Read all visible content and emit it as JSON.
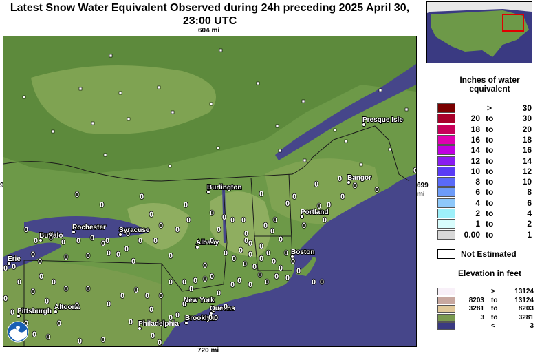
{
  "title": {
    "line1": "Latest Snow Water Equivalent Observed during 24h preceding 2025 April 30,",
    "line2": "23:00 UTC"
  },
  "distances": {
    "top": "604 mi",
    "bottom": "720 mi",
    "right_value": "699",
    "right_unit": "mi",
    "left_value": "9"
  },
  "cities": [
    {
      "name": "Presque Isle"
    },
    {
      "name": "Burlington"
    },
    {
      "name": "Bangor"
    },
    {
      "name": "Rochester"
    },
    {
      "name": "Syracuse"
    },
    {
      "name": "Buffalo"
    },
    {
      "name": "Portland"
    },
    {
      "name": "Albany"
    },
    {
      "name": "Erie"
    },
    {
      "name": "Boston"
    },
    {
      "name": "New York"
    },
    {
      "name": "Queens"
    },
    {
      "name": "Pittsburgh"
    },
    {
      "name": "Altoona"
    },
    {
      "name": "Philadelphia"
    },
    {
      "name": "Brooklyn"
    }
  ],
  "observation_marker": "0",
  "legend": {
    "title_line1": "Inches of water",
    "title_line2": "equivalent",
    "to_label": "to",
    "rows": [
      {
        "low": "",
        "high": "30",
        "prefix": ">",
        "color": "#7a0000"
      },
      {
        "low": "20",
        "high": "30",
        "color": "#a8002a"
      },
      {
        "low": "18",
        "high": "20",
        "color": "#c8005a"
      },
      {
        "low": "16",
        "high": "18",
        "color": "#e000b0"
      },
      {
        "low": "14",
        "high": "16",
        "color": "#c000e0"
      },
      {
        "low": "12",
        "high": "14",
        "color": "#8a1cf0"
      },
      {
        "low": "10",
        "high": "12",
        "color": "#5a3cf5"
      },
      {
        "low": "8",
        "high": "10",
        "color": "#5a6af8"
      },
      {
        "low": "6",
        "high": "8",
        "color": "#6e9cf8"
      },
      {
        "low": "4",
        "high": "6",
        "color": "#8ec8fa"
      },
      {
        "low": "2",
        "high": "4",
        "color": "#9ef0fa"
      },
      {
        "low": "1",
        "high": "2",
        "color": "#d8fcfc"
      },
      {
        "low": "0.00",
        "high": "1",
        "color": "#d8d8d8"
      }
    ],
    "not_estimated": "Not Estimated",
    "not_estimated_color": "#ffffff"
  },
  "elevation_legend": {
    "title": "Elevation in feet",
    "rows": [
      {
        "low": "",
        "prefix": ">",
        "high": "13124",
        "color": "#f8f0f8"
      },
      {
        "low": "8203",
        "high": "13124",
        "color": "#c8a8a0"
      },
      {
        "low": "3281",
        "high": "8203",
        "color": "#e0c89a"
      },
      {
        "low": "3",
        "high": "3281",
        "color": "#7a9a50"
      },
      {
        "low": "",
        "prefix": "<",
        "high": "3",
        "color": "#3a3a82"
      }
    ]
  },
  "colors": {
    "land_low": "#6d9948",
    "land_mid": "#5c8a3e",
    "land_high": "#8fae60",
    "water": "#46468a",
    "border": "#1a1a1a"
  },
  "icons": {
    "logo": "noaa-logo-icon",
    "station": "station-marker-icon"
  }
}
